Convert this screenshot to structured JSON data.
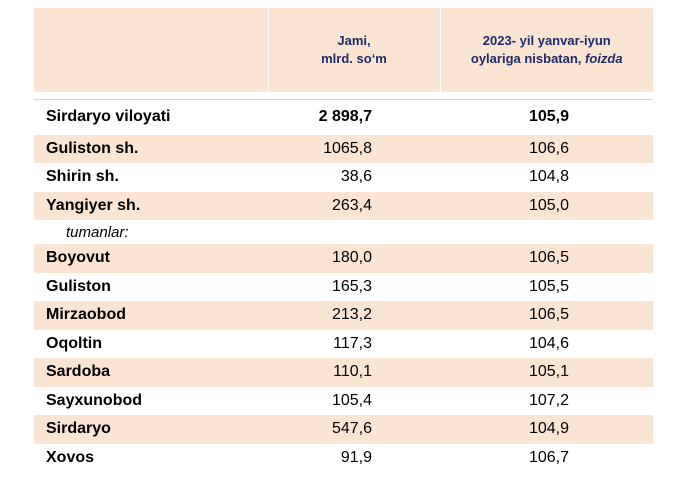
{
  "header": {
    "col1": "",
    "col2_line1": "Jami,",
    "col2_line2": "mlrd. so‘m",
    "col3_line1": "2023- yil yanvar-iyun",
    "col3_line2_a": "oylariga nisbatan, ",
    "col3_line2_b": "foizda"
  },
  "total": {
    "name": "Sirdaryo viloyati",
    "value": "2 898,7",
    "percent": "105,9"
  },
  "cities": [
    {
      "name": "Guliston  sh.",
      "value": "1065,8",
      "percent": "106,6"
    },
    {
      "name": "Shirin sh.",
      "value": "38,6",
      "percent": "104,8"
    },
    {
      "name": "Yangiyer sh.",
      "value": "263,4",
      "percent": "105,0"
    }
  ],
  "subheader": "tumanlar:",
  "districts": [
    {
      "name": "Boyovut",
      "value": "180,0",
      "percent": "106,5"
    },
    {
      "name": "Guliston",
      "value": "165,3",
      "percent": "105,5"
    },
    {
      "name": "Mirzaobod",
      "value": "213,2",
      "percent": "106,5"
    },
    {
      "name": "Oqoltin",
      "value": "117,3",
      "percent": "104,6"
    },
    {
      "name": "Sardoba",
      "value": "110,1",
      "percent": "105,1"
    },
    {
      "name": "Sayxunobod",
      "value": "105,4",
      "percent": "107,2"
    },
    {
      "name": "Sirdaryo",
      "value": "547,6",
      "percent": "104,9"
    },
    {
      "name": "Xovos",
      "value": "91,9",
      "percent": "106,7"
    }
  ]
}
